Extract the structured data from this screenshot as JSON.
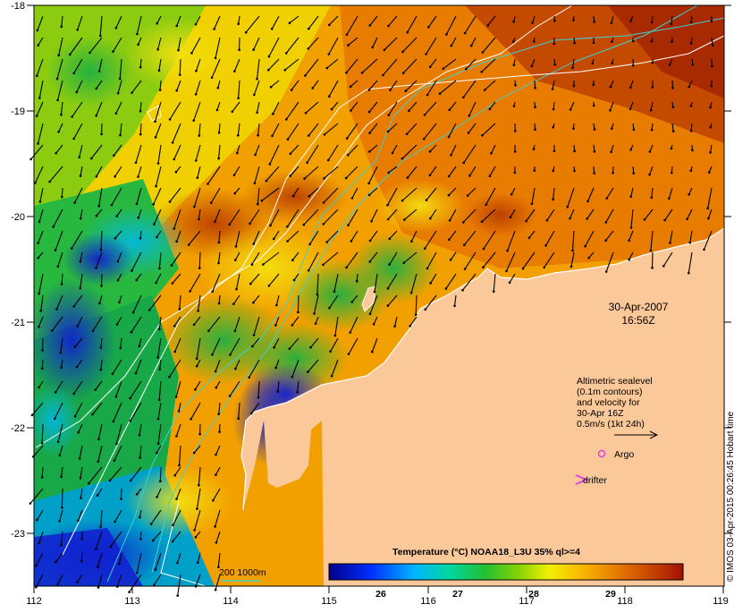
{
  "map": {
    "date": "30-Apr-2007",
    "time": "16:56Z",
    "lat_ticks": [
      "-18",
      "-19",
      "-20",
      "-21",
      "-22",
      "-23"
    ],
    "lon_ticks": [
      "112",
      "113",
      "114",
      "115",
      "116",
      "117",
      "118",
      "119"
    ],
    "lat_range": [
      -23.6,
      -18
    ],
    "lon_range": [
      112,
      119
    ]
  },
  "legend": {
    "sealevel_lines": [
      "Altimetric sealevel",
      "(0.1m contours)",
      "and velocity for",
      "30-Apr 16Z",
      "0.5m/s (1kt 24h)"
    ],
    "argo_label": "Argo",
    "drifter_label": "drifter",
    "isobath_label": "200  1000m"
  },
  "colorbar": {
    "title": "Temperature (°C) NOAA18_L3U 35% ql>=4",
    "ticks": [
      "26",
      "27",
      "28",
      "29"
    ],
    "range": [
      25.5,
      29.9
    ]
  },
  "credit": "© IMOS 03-Apr-2015 00:26:45 Hobart time",
  "colors": {
    "land": "#fbc89a",
    "contour": "#ffffff",
    "isobath": "#3fd0d0",
    "argo": "#e040e0",
    "drifter": "#e040e0"
  }
}
